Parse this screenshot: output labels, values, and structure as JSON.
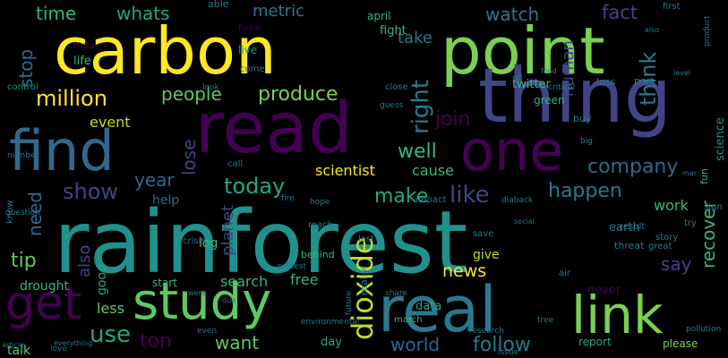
{
  "wordcloud": {
    "words": [
      {
        "text": "carbon",
        "color": "#fde725"
      },
      {
        "text": "point",
        "color": "#7ad151"
      },
      {
        "text": "thing",
        "color": "#414487"
      },
      {
        "text": "read",
        "color": "#440154"
      },
      {
        "text": "find",
        "color": "#31688e"
      },
      {
        "text": "one",
        "color": "#440154"
      },
      {
        "text": "rainforest",
        "color": "#21918c"
      },
      {
        "text": "study",
        "color": "#5ec962"
      },
      {
        "text": "real",
        "color": "#2a788e"
      },
      {
        "text": "link",
        "color": "#7ad151"
      },
      {
        "text": "get",
        "color": "#440154"
      },
      {
        "text": "dioxide",
        "color": "#bddf26"
      },
      {
        "text": "time",
        "color": "#35b779"
      },
      {
        "text": "whats",
        "color": "#22a884"
      },
      {
        "text": "metric",
        "color": "#2a788e"
      },
      {
        "text": "take",
        "color": "#2a788e"
      },
      {
        "text": "watch",
        "color": "#2a788e"
      },
      {
        "text": "fact",
        "color": "#414487"
      },
      {
        "text": "think",
        "color": "#2a788e"
      },
      {
        "text": "million",
        "color": "#fde725"
      },
      {
        "text": "people",
        "color": "#5ec962"
      },
      {
        "text": "produce",
        "color": "#7ad151"
      },
      {
        "text": "right",
        "color": "#2a788e"
      },
      {
        "text": "human",
        "color": "#414487"
      },
      {
        "text": "join",
        "color": "#440154"
      },
      {
        "text": "well",
        "color": "#35b779"
      },
      {
        "text": "company",
        "color": "#31688e"
      },
      {
        "text": "science",
        "color": "#21918c"
      },
      {
        "text": "event",
        "color": "#bddf26"
      },
      {
        "text": "stop",
        "color": "#31688e"
      },
      {
        "text": "lose",
        "color": "#414487"
      },
      {
        "text": "year",
        "color": "#31688e"
      },
      {
        "text": "show",
        "color": "#414487"
      },
      {
        "text": "today",
        "color": "#22a884"
      },
      {
        "text": "make",
        "color": "#22a884"
      },
      {
        "text": "like",
        "color": "#414487"
      },
      {
        "text": "happen",
        "color": "#2a788e"
      },
      {
        "text": "need",
        "color": "#31688e"
      },
      {
        "text": "scientist",
        "color": "#fde725"
      },
      {
        "text": "cause",
        "color": "#35b779"
      },
      {
        "text": "recover",
        "color": "#35b779"
      },
      {
        "text": "say",
        "color": "#414487"
      },
      {
        "text": "tip",
        "color": "#5ec962"
      },
      {
        "text": "also",
        "color": "#414487"
      },
      {
        "text": "use",
        "color": "#22a884"
      },
      {
        "text": "ton",
        "color": "#440154"
      },
      {
        "text": "want",
        "color": "#5ec962"
      },
      {
        "text": "news",
        "color": "#fde725"
      },
      {
        "text": "give",
        "color": "#bddf26"
      },
      {
        "text": "world",
        "color": "#31688e"
      },
      {
        "text": "follow",
        "color": "#2a788e"
      },
      {
        "text": "free",
        "color": "#35b779"
      },
      {
        "text": "search",
        "color": "#35b779"
      },
      {
        "text": "drought",
        "color": "#35b779"
      },
      {
        "text": "less",
        "color": "#5ec962"
      },
      {
        "text": "talk",
        "color": "#5ec962"
      },
      {
        "text": "work",
        "color": "#35b779"
      },
      {
        "text": "planet",
        "color": "#414487"
      },
      {
        "text": "log",
        "color": "#35b779"
      },
      {
        "text": "help",
        "color": "#31688e"
      },
      {
        "text": "good",
        "color": "#22a884"
      },
      {
        "text": "data",
        "color": "#22a884"
      },
      {
        "text": "day",
        "color": "#22a884"
      },
      {
        "text": "report",
        "color": "#22a884"
      },
      {
        "text": "never",
        "color": "#440154"
      },
      {
        "text": "please",
        "color": "#7ad151"
      },
      {
        "text": "fight",
        "color": "#35b779"
      },
      {
        "text": "april",
        "color": "#35b779"
      },
      {
        "text": "twitter",
        "color": "#35b779"
      },
      {
        "text": "life",
        "color": "#35b779"
      },
      {
        "text": "earth",
        "color": "#2a788e"
      },
      {
        "text": "live",
        "color": "#21918c"
      },
      {
        "text": "control",
        "color": "#21918c"
      },
      {
        "text": "able",
        "color": "#2a788e"
      },
      {
        "text": "forest",
        "color": "#440154"
      },
      {
        "text": "may",
        "color": "#440154"
      },
      {
        "text": "first",
        "color": "#2a788e"
      },
      {
        "text": "come",
        "color": "#2a788e"
      },
      {
        "text": "green",
        "color": "#35b779"
      },
      {
        "text": "loss",
        "color": "#2a788e"
      },
      {
        "text": "part",
        "color": "#2a788e"
      },
      {
        "text": "fun",
        "color": "#35b779"
      },
      {
        "text": "start",
        "color": "#35b779"
      },
      {
        "text": "behind",
        "color": "#35b779"
      },
      {
        "text": "march",
        "color": "#35b779"
      },
      {
        "text": "know",
        "color": "#2a788e"
      },
      {
        "text": "threat",
        "color": "#2a788e"
      },
      {
        "text": "sign",
        "color": "#2a788e"
      },
      {
        "text": "impact",
        "color": "#2a788e"
      },
      {
        "text": "last",
        "color": "#2a788e"
      },
      {
        "text": "call",
        "color": "#2a788e"
      },
      {
        "text": "close",
        "color": "#2a788e"
      },
      {
        "text": "oil",
        "color": "#2a788e"
      },
      {
        "text": "buy",
        "color": "#2a788e"
      },
      {
        "text": "story",
        "color": "#2a788e"
      },
      {
        "text": "result",
        "color": "#2a788e"
      },
      {
        "text": "great",
        "color": "#2a788e"
      },
      {
        "text": "try",
        "color": "#2a788e"
      },
      {
        "text": "really",
        "color": "#2a788e"
      },
      {
        "text": "save",
        "color": "#2a788e"
      },
      {
        "text": "air",
        "color": "#2a788e"
      },
      {
        "text": "big",
        "color": "#2a788e"
      },
      {
        "text": "question",
        "color": "#2a788e"
      },
      {
        "text": "number",
        "color": "#2a788e"
      },
      {
        "text": "critical",
        "color": "#2a788e"
      },
      {
        "text": "crisis",
        "color": "#2a788e"
      },
      {
        "text": "even",
        "color": "#2a788e"
      },
      {
        "text": "love",
        "color": "#2a788e"
      },
      {
        "text": "reach",
        "color": "#2a788e"
      },
      {
        "text": "hope",
        "color": "#2a788e"
      },
      {
        "text": "article",
        "color": "#2a788e"
      },
      {
        "text": "everything",
        "color": "#2a788e"
      },
      {
        "text": "issue",
        "color": "#2a788e"
      },
      {
        "text": "protest",
        "color": "#2a788e"
      },
      {
        "text": "fire",
        "color": "#2a788e"
      },
      {
        "text": "look",
        "color": "#2a788e"
      },
      {
        "text": "tree",
        "color": "#2a788e"
      },
      {
        "text": "pollution",
        "color": "#2a788e"
      },
      {
        "text": "product",
        "color": "#2a788e"
      },
      {
        "text": "share",
        "color": "#2a788e"
      },
      {
        "text": "research",
        "color": "#2a788e"
      },
      {
        "text": "guess",
        "color": "#2a788e"
      },
      {
        "text": "food",
        "color": "#2a788e"
      },
      {
        "text": "environmental",
        "color": "#2a788e"
      },
      {
        "text": "diaback",
        "color": "#2a788e"
      },
      {
        "text": "future",
        "color": "#2a788e"
      },
      {
        "text": "were",
        "color": "#2a788e"
      },
      {
        "text": "due",
        "color": "#2a788e"
      },
      {
        "text": "social",
        "color": "#2a788e"
      },
      {
        "text": "mar",
        "color": "#2a788e"
      },
      {
        "text": "also",
        "color": "#2a788e"
      },
      {
        "text": "level",
        "color": "#2a788e"
      }
    ]
  }
}
